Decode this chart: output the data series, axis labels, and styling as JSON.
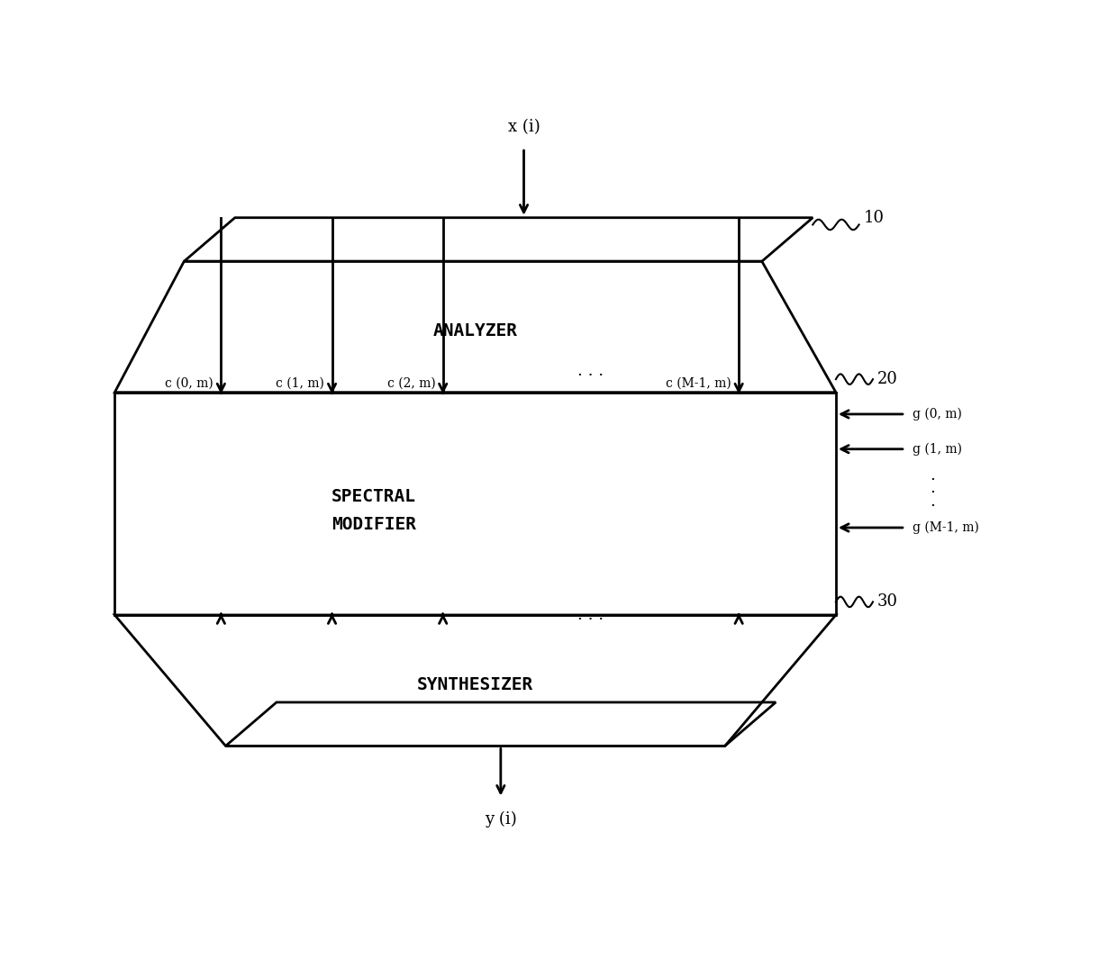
{
  "bg_color": "#ffffff",
  "line_color": "#000000",
  "fig_width": 12.4,
  "fig_height": 10.75,
  "analyzer_label": "ANALYZER",
  "modifier_label": "SPECTRAL\nMODIFIER",
  "synthesizer_label": "SYNTHESIZER",
  "ref_10": "10",
  "ref_20": "20",
  "ref_30": "30",
  "input_label": "x (i)",
  "output_label": "y (i)",
  "channel_labels": [
    "c (0, m)",
    "c (1, m)",
    "c (2, m)",
    "c (M-1, m)"
  ],
  "chan_dots": ". . .",
  "gain_labels": [
    "g (0, m)",
    "g (1, m)",
    "g (M-1, m)"
  ],
  "font_size": 13,
  "lw": 2.0
}
